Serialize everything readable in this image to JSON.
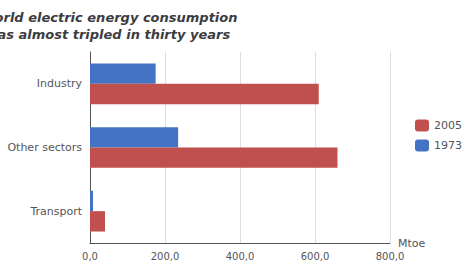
{
  "chart_data": {
    "type": "bar",
    "orientation": "horizontal",
    "title": "World electric energy consumption\nhas almost tripled in thirty years",
    "categories": [
      "Transport",
      "Other sectors",
      "Industry"
    ],
    "series": [
      {
        "name": "2005",
        "color": "#C0504D",
        "values": [
          40,
          660,
          610
        ]
      },
      {
        "name": "1973",
        "color": "#4472C4",
        "values": [
          8,
          235,
          175
        ]
      }
    ],
    "xlabel": "Mtoe",
    "xlim": [
      0,
      800
    ],
    "xticks": [
      {
        "value": 0,
        "label": "0,0"
      },
      {
        "value": 200,
        "label": "200,0"
      },
      {
        "value": 400,
        "label": "400,0"
      },
      {
        "value": 600,
        "label": "600,0"
      },
      {
        "value": 800,
        "label": "800,0"
      }
    ],
    "grid": true,
    "legend": "right"
  }
}
